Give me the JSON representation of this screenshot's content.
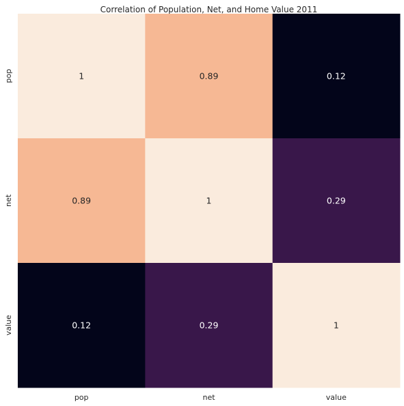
{
  "chart_data": {
    "type": "heatmap",
    "title": "Correlation of Population, Net, and Home Value 2011",
    "xlabel": "",
    "ylabel": "",
    "x_categories": [
      "pop",
      "net",
      "value"
    ],
    "y_categories": [
      "pop",
      "net",
      "value"
    ],
    "values": [
      [
        1,
        0.89,
        0.12
      ],
      [
        0.89,
        1,
        0.29
      ],
      [
        0.12,
        0.29,
        1
      ]
    ],
    "cell_labels": [
      [
        "1",
        "0.89",
        "0.12"
      ],
      [
        "0.89",
        "1",
        "0.29"
      ],
      [
        "0.12",
        "0.29",
        "1"
      ]
    ],
    "colormap": "rocket",
    "colorbar": false,
    "colors": {
      "low": "#03051a",
      "high": "#faebdd",
      "label_dark": "#262626",
      "label_light": "#ffffff"
    }
  }
}
